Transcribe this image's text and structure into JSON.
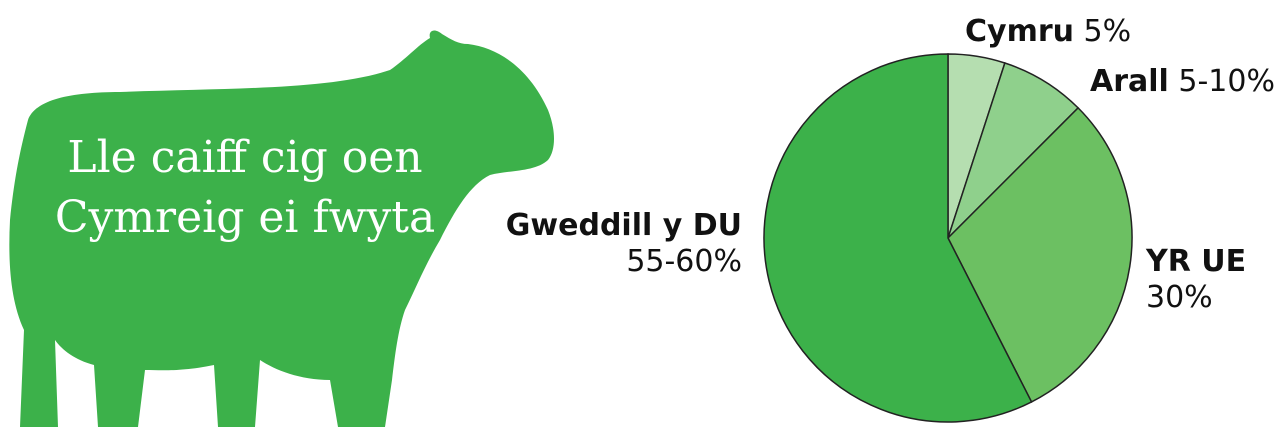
{
  "title": "Lle caiff cig oen Cymreig ei fwyta",
  "colors": {
    "sheep": "#3cb14a",
    "outline": "#222222"
  },
  "chart_data": {
    "type": "pie",
    "title": "Lle caiff cig oen Cymreig ei fwyta",
    "slices": [
      {
        "name": "Cymru",
        "label": "5%",
        "value": 5,
        "color": "#b5deb0"
      },
      {
        "name": "Arall",
        "label": "5-10%",
        "value": 7.5,
        "color": "#8fd08c"
      },
      {
        "name": "YR UE",
        "label": "30%",
        "value": 30,
        "color": "#6cc062"
      },
      {
        "name": "Gweddill y DU",
        "label": "55-60%",
        "value": 57.5,
        "color": "#3cb14a"
      }
    ]
  }
}
